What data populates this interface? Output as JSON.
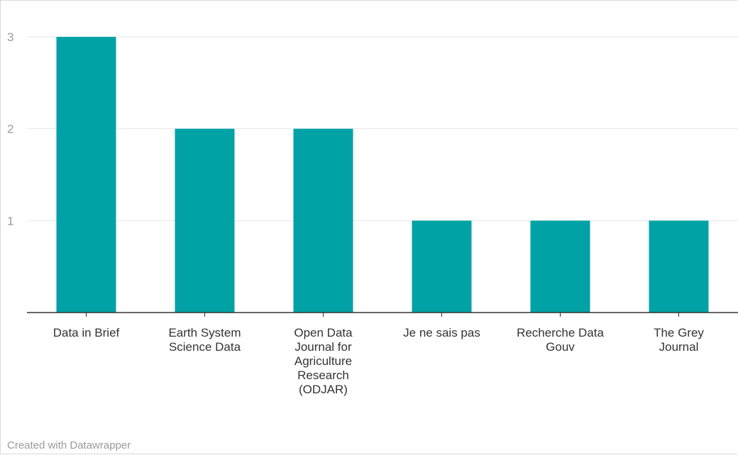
{
  "chart_data": {
    "type": "bar",
    "categories": [
      "Data in Brief",
      "Earth System\nScience Data",
      "Open Data\nJournal for\nAgriculture\nResearch\n(ODJAR)",
      "Je ne sais pas",
      "Recherche Data\nGouv",
      "The Grey\nJournal"
    ],
    "values": [
      3,
      2,
      2,
      1,
      1,
      1
    ],
    "ylim": [
      0,
      3
    ],
    "yticks": [
      1,
      2,
      3
    ],
    "grid": true,
    "bar_color": "#00a2a5",
    "title": "",
    "xlabel": "",
    "ylabel": ""
  },
  "footer": {
    "credit": "Created with Datawrapper"
  }
}
